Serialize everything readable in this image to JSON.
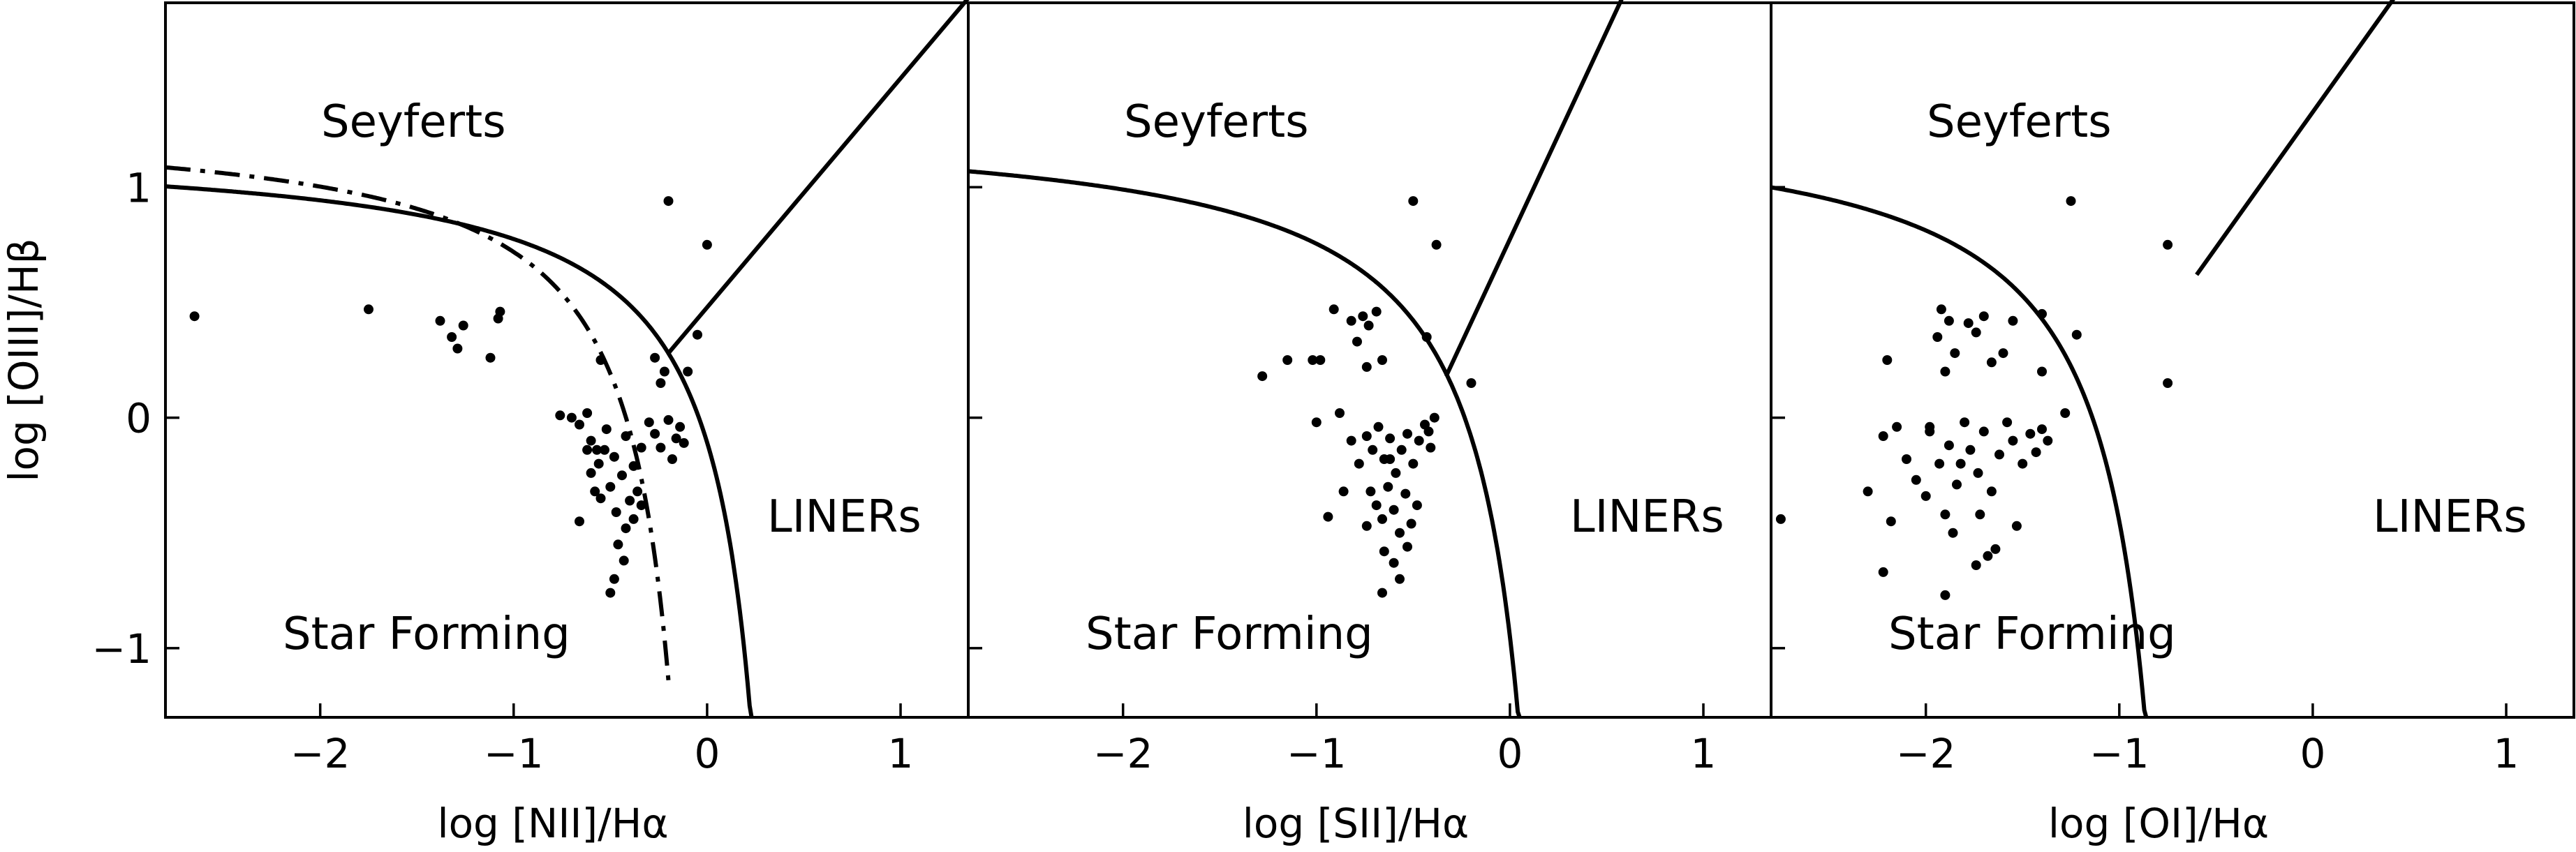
{
  "chart_data": [
    {
      "type": "scatter",
      "xlabel": "log [NII]/Hα",
      "ylabel": "log [OIII]/Hβ",
      "xlim": [
        -2.8,
        1.35
      ],
      "ylim": [
        -1.3,
        1.8
      ],
      "xticks": [
        "−2",
        "−1",
        "0",
        "1"
      ],
      "yticks": [
        "1",
        "0",
        "−1"
      ],
      "regions": [
        "Seyferts",
        "LINERs",
        "Star Forming"
      ],
      "curves": [
        {
          "kind": "kewley",
          "style": "solid"
        },
        {
          "kind": "kauffmann",
          "style": "dashdot"
        },
        {
          "kind": "liner-line",
          "style": "solid"
        }
      ],
      "points": [
        [
          -2.65,
          0.44
        ],
        [
          -1.75,
          0.47
        ],
        [
          -1.38,
          0.42
        ],
        [
          -1.32,
          0.35
        ],
        [
          -1.29,
          0.3
        ],
        [
          -1.26,
          0.4
        ],
        [
          -1.12,
          0.26
        ],
        [
          -1.08,
          0.43
        ],
        [
          -1.07,
          0.46
        ],
        [
          -0.2,
          0.94
        ],
        [
          0.0,
          0.75
        ],
        [
          -0.05,
          0.36
        ],
        [
          -0.55,
          0.25
        ],
        [
          -0.27,
          0.26
        ],
        [
          -0.22,
          0.2
        ],
        [
          -0.1,
          0.2
        ],
        [
          -0.24,
          0.15
        ],
        [
          -0.76,
          0.01
        ],
        [
          -0.7,
          0.0
        ],
        [
          -0.66,
          -0.03
        ],
        [
          -0.62,
          0.02
        ],
        [
          -0.6,
          -0.1
        ],
        [
          -0.57,
          -0.14
        ],
        [
          -0.52,
          -0.05
        ],
        [
          -0.48,
          -0.17
        ],
        [
          -0.42,
          -0.08
        ],
        [
          -0.38,
          -0.21
        ],
        [
          -0.34,
          -0.13
        ],
        [
          -0.3,
          -0.02
        ],
        [
          -0.27,
          -0.07
        ],
        [
          -0.24,
          -0.13
        ],
        [
          -0.2,
          -0.01
        ],
        [
          -0.16,
          -0.09
        ],
        [
          -0.14,
          -0.04
        ],
        [
          -0.18,
          -0.18
        ],
        [
          -0.12,
          -0.11
        ],
        [
          -0.62,
          -0.14
        ],
        [
          -0.6,
          -0.24
        ],
        [
          -0.58,
          -0.32
        ],
        [
          -0.55,
          -0.35
        ],
        [
          -0.5,
          -0.3
        ],
        [
          -0.47,
          -0.41
        ],
        [
          -0.44,
          -0.25
        ],
        [
          -0.42,
          -0.48
        ],
        [
          -0.4,
          -0.36
        ],
        [
          -0.38,
          -0.44
        ],
        [
          -0.36,
          -0.32
        ],
        [
          -0.34,
          -0.38
        ],
        [
          -0.46,
          -0.55
        ],
        [
          -0.43,
          -0.62
        ],
        [
          -0.48,
          -0.7
        ],
        [
          -0.5,
          -0.76
        ],
        [
          -0.66,
          -0.45
        ],
        [
          -0.53,
          -0.14
        ],
        [
          -0.56,
          -0.2
        ]
      ]
    },
    {
      "type": "scatter",
      "xlabel": "log [SII]/Hα",
      "ylabel": "",
      "xlim": [
        -2.8,
        1.35
      ],
      "ylim": [
        -1.3,
        1.8
      ],
      "xticks": [
        "−2",
        "−1",
        "0",
        "1"
      ],
      "regions": [
        "Seyferts",
        "LINERs",
        "Star Forming"
      ],
      "curves": [
        {
          "kind": "kewley-sii",
          "style": "solid"
        },
        {
          "kind": "liner-line-sii",
          "style": "solid"
        }
      ],
      "points": [
        [
          -1.02,
          0.25
        ],
        [
          -0.98,
          0.25
        ],
        [
          -1.15,
          0.25
        ],
        [
          -1.28,
          0.18
        ],
        [
          -0.91,
          0.47
        ],
        [
          -0.82,
          0.42
        ],
        [
          -0.79,
          0.33
        ],
        [
          -0.76,
          0.44
        ],
        [
          -0.73,
          0.4
        ],
        [
          -0.69,
          0.46
        ],
        [
          -0.74,
          0.22
        ],
        [
          -0.66,
          0.25
        ],
        [
          -0.5,
          0.94
        ],
        [
          -0.38,
          0.75
        ],
        [
          -0.43,
          0.35
        ],
        [
          -0.2,
          0.15
        ],
        [
          -1.0,
          -0.02
        ],
        [
          -0.88,
          0.02
        ],
        [
          -0.82,
          -0.1
        ],
        [
          -0.78,
          -0.2
        ],
        [
          -0.74,
          -0.08
        ],
        [
          -0.71,
          -0.14
        ],
        [
          -0.68,
          -0.04
        ],
        [
          -0.65,
          -0.18
        ],
        [
          -0.62,
          -0.09
        ],
        [
          -0.59,
          -0.24
        ],
        [
          -0.56,
          -0.14
        ],
        [
          -0.53,
          -0.07
        ],
        [
          -0.5,
          -0.2
        ],
        [
          -0.47,
          -0.1
        ],
        [
          -0.44,
          -0.03
        ],
        [
          -0.41,
          -0.13
        ],
        [
          -0.39,
          0.0
        ],
        [
          -0.42,
          -0.06
        ],
        [
          -0.72,
          -0.32
        ],
        [
          -0.69,
          -0.38
        ],
        [
          -0.66,
          -0.44
        ],
        [
          -0.63,
          -0.3
        ],
        [
          -0.6,
          -0.4
        ],
        [
          -0.57,
          -0.5
        ],
        [
          -0.54,
          -0.33
        ],
        [
          -0.51,
          -0.46
        ],
        [
          -0.48,
          -0.38
        ],
        [
          -0.74,
          -0.47
        ],
        [
          -0.86,
          -0.32
        ],
        [
          -0.94,
          -0.43
        ],
        [
          -0.65,
          -0.58
        ],
        [
          -0.6,
          -0.63
        ],
        [
          -0.57,
          -0.7
        ],
        [
          -0.66,
          -0.76
        ],
        [
          -0.53,
          -0.56
        ],
        [
          -0.62,
          -0.18
        ]
      ]
    },
    {
      "type": "scatter",
      "xlabel": "log [OI]/Hα",
      "ylabel": "",
      "xlim": [
        -2.8,
        1.35
      ],
      "ylim": [
        -1.3,
        1.8
      ],
      "xticks": [
        "−2",
        "−1",
        "0",
        "1"
      ],
      "regions": [
        "Seyferts",
        "LINERs",
        "Star Forming"
      ],
      "curves": [
        {
          "kind": "kewley-oi",
          "style": "solid"
        },
        {
          "kind": "liner-line-oi",
          "style": "solid"
        }
      ],
      "points": [
        [
          -2.75,
          -0.44
        ],
        [
          -1.25,
          0.94
        ],
        [
          -0.75,
          0.75
        ],
        [
          -1.22,
          0.36
        ],
        [
          -0.75,
          0.15
        ],
        [
          -2.2,
          0.25
        ],
        [
          -1.92,
          0.47
        ],
        [
          -1.88,
          0.42
        ],
        [
          -1.94,
          0.35
        ],
        [
          -1.9,
          0.2
        ],
        [
          -1.85,
          0.28
        ],
        [
          -1.78,
          0.41
        ],
        [
          -1.74,
          0.37
        ],
        [
          -1.7,
          0.44
        ],
        [
          -1.66,
          0.24
        ],
        [
          -1.6,
          0.28
        ],
        [
          -1.55,
          0.42
        ],
        [
          -1.4,
          0.45
        ],
        [
          -1.4,
          0.2
        ],
        [
          -1.28,
          0.02
        ],
        [
          -2.15,
          -0.04
        ],
        [
          -2.22,
          -0.08
        ],
        [
          -2.1,
          -0.18
        ],
        [
          -2.05,
          -0.27
        ],
        [
          -2.0,
          -0.34
        ],
        [
          -1.98,
          -0.04
        ],
        [
          -1.93,
          -0.2
        ],
        [
          -1.88,
          -0.12
        ],
        [
          -1.84,
          -0.29
        ],
        [
          -1.8,
          -0.02
        ],
        [
          -1.77,
          -0.14
        ],
        [
          -1.73,
          -0.24
        ],
        [
          -1.7,
          -0.06
        ],
        [
          -1.66,
          -0.32
        ],
        [
          -1.62,
          -0.16
        ],
        [
          -1.58,
          -0.02
        ],
        [
          -1.55,
          -0.1
        ],
        [
          -1.5,
          -0.2
        ],
        [
          -1.46,
          -0.07
        ],
        [
          -1.43,
          -0.15
        ],
        [
          -1.4,
          -0.05
        ],
        [
          -1.37,
          -0.1
        ],
        [
          -2.3,
          -0.32
        ],
        [
          -2.18,
          -0.45
        ],
        [
          -1.9,
          -0.42
        ],
        [
          -1.86,
          -0.5
        ],
        [
          -1.72,
          -0.42
        ],
        [
          -1.68,
          -0.6
        ],
        [
          -1.64,
          -0.57
        ],
        [
          -1.53,
          -0.47
        ],
        [
          -2.22,
          -0.67
        ],
        [
          -1.9,
          -0.77
        ],
        [
          -1.98,
          -0.06
        ],
        [
          -1.82,
          -0.2
        ],
        [
          -1.74,
          -0.64
        ]
      ]
    }
  ]
}
